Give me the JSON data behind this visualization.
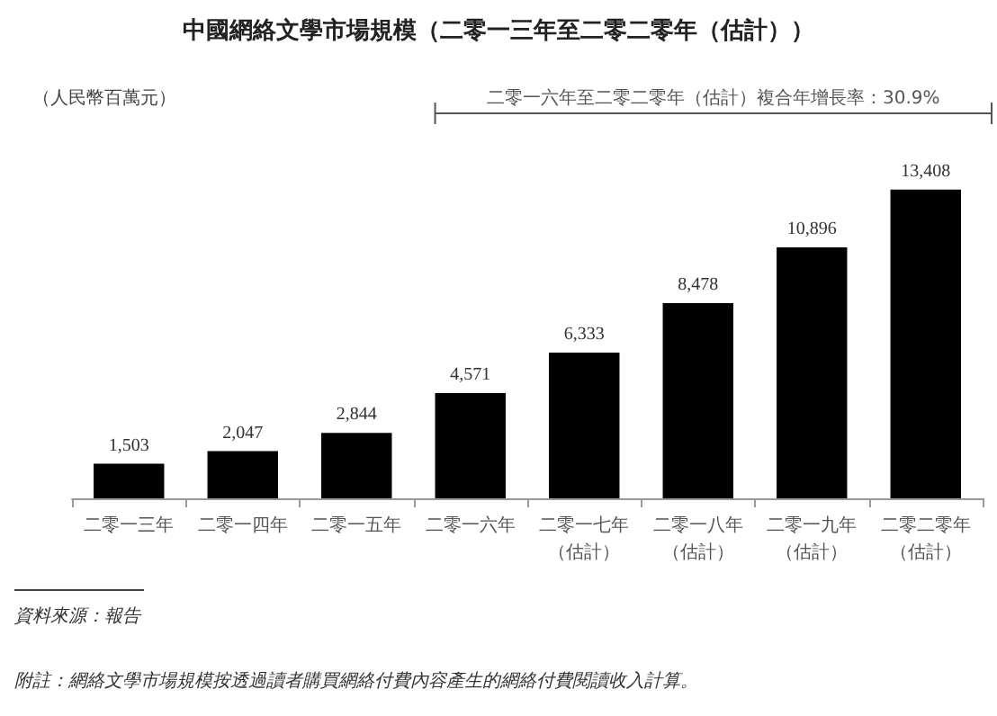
{
  "chart_data": {
    "type": "bar",
    "title": "中國網絡文學市場規模（二零一三年至二零二零年（估計））",
    "ylabel": "（人民幣百萬元）",
    "categories": [
      "二零一三年",
      "二零一四年",
      "二零一五年",
      "二零一六年",
      "二零一七年（估計）",
      "二零一八年（估計）",
      "二零一九年（估計）",
      "二零二零年（估計）"
    ],
    "values": [
      1503,
      2047,
      2844,
      4571,
      6333,
      8478,
      10896,
      13408
    ],
    "value_labels": [
      "1,503",
      "2,047",
      "2,844",
      "4,571",
      "6,333",
      "8,478",
      "10,896",
      "13,408"
    ],
    "color": "#000000",
    "annotations": [
      "二零一六年至二零二零年（估計）複合年增長率：30.9%",
      "資料來源：報告",
      "附註：網絡文學市場規模按透過讀者購買網絡付費內容產生的網絡付費閱讀收入計算。"
    ]
  }
}
